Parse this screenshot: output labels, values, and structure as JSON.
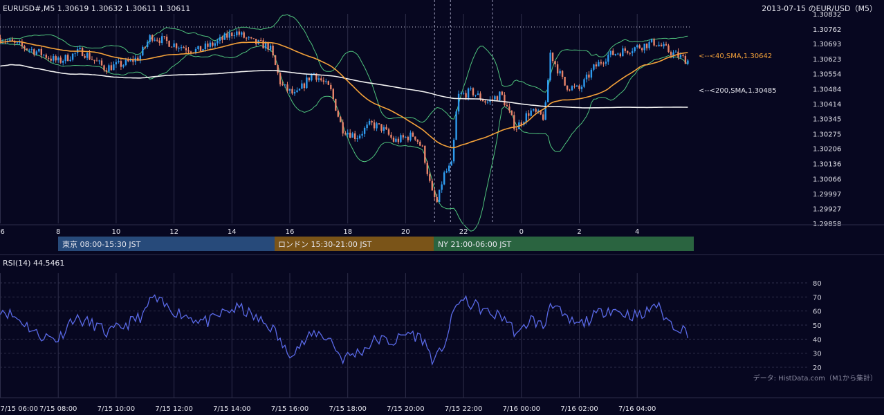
{
  "header": {
    "symbol_line": "EURUSD#,M5 1.30619 1.30632 1.30611 1.30611",
    "title": "2013-07-15 のEUR/USD（M5）"
  },
  "sessions": [
    {
      "label": "東京 08:00-15:30 JST",
      "color": "#274a7a"
    },
    {
      "label": "ロンドン 15:30-21:00 JST",
      "color": "#7a5418"
    },
    {
      "label": "NY 21:00-06:00 JST",
      "color": "#2a6440"
    }
  ],
  "legend": {
    "sma40": "<--<40,SMA,1.30642",
    "sma200": "<--<200,SMA,1.30485"
  },
  "rsi": {
    "label": "RSI(14) 44.5461",
    "ticks": [
      "80",
      "70",
      "60",
      "50",
      "40",
      "30",
      "20"
    ]
  },
  "source": "データ: HistData.com（M1から集計）",
  "colors": {
    "background": "#070720",
    "grid": "#2e2e4a",
    "bull": "#2f9cf0",
    "bear": "#e8846a",
    "sma40": "#f5a23a",
    "sma200": "#f2f2f2",
    "bollinger": "#4fc47d",
    "rsi": "#5a6ae8"
  },
  "chart_data": [
    {
      "type": "candlestick",
      "ylim": [
        1.29858,
        1.30832
      ],
      "y_ticks": [
        "1.30832",
        "1.30762",
        "1.30693",
        "1.30623",
        "1.30554",
        "1.30484",
        "1.30414",
        "1.30345",
        "1.30275",
        "1.30206",
        "1.30136",
        "1.30066",
        "1.29997",
        "1.29927",
        "1.29858"
      ],
      "x_ticks": [
        "6",
        "8",
        "10",
        "12",
        "14",
        "16",
        "18",
        "20",
        "22",
        "0",
        "2",
        "4"
      ],
      "x_labels_bottom": [
        "7/15 06:00",
        "7/15 08:00",
        "7/15 10:00",
        "7/15 12:00",
        "7/15 14:00",
        "7/15 16:00",
        "7/15 18:00",
        "7/15 20:00",
        "7/15 22:00",
        "7/16 00:00",
        "7/16 02:00",
        "7/16 04:00"
      ],
      "series": [
        {
          "name": "40,SMA",
          "last": 1.30642
        },
        {
          "name": "200,SMA",
          "last": 1.30485
        }
      ],
      "price_anchors": [
        {
          "hour": 6.0,
          "price": 1.3072
        },
        {
          "hour": 6.5,
          "price": 1.3069
        },
        {
          "hour": 7.2,
          "price": 1.3066
        },
        {
          "hour": 8.0,
          "price": 1.3061
        },
        {
          "hour": 8.8,
          "price": 1.3066
        },
        {
          "hour": 9.6,
          "price": 1.3058
        },
        {
          "hour": 10.3,
          "price": 1.306
        },
        {
          "hour": 10.8,
          "price": 1.3063
        },
        {
          "hour": 11.2,
          "price": 1.3073
        },
        {
          "hour": 12.0,
          "price": 1.3069
        },
        {
          "hour": 12.8,
          "price": 1.3066
        },
        {
          "hour": 13.5,
          "price": 1.307
        },
        {
          "hour": 14.1,
          "price": 1.3075
        },
        {
          "hour": 14.7,
          "price": 1.307
        },
        {
          "hour": 15.3,
          "price": 1.3068
        },
        {
          "hour": 15.7,
          "price": 1.305
        },
        {
          "hour": 16.2,
          "price": 1.3045
        },
        {
          "hour": 16.8,
          "price": 1.3056
        },
        {
          "hour": 17.4,
          "price": 1.3048
        },
        {
          "hour": 17.8,
          "price": 1.303
        },
        {
          "hour": 18.3,
          "price": 1.3026
        },
        {
          "hour": 18.8,
          "price": 1.3032
        },
        {
          "hour": 19.2,
          "price": 1.303
        },
        {
          "hour": 19.6,
          "price": 1.3024
        },
        {
          "hour": 20.3,
          "price": 1.3027
        },
        {
          "hour": 20.6,
          "price": 1.302
        },
        {
          "hour": 20.9,
          "price": 1.3
        },
        {
          "hour": 21.1,
          "price": 1.2995
        },
        {
          "hour": 21.3,
          "price": 1.3008
        },
        {
          "hour": 21.6,
          "price": 1.3013
        },
        {
          "hour": 21.8,
          "price": 1.3045
        },
        {
          "hour": 22.3,
          "price": 1.3047
        },
        {
          "hour": 22.8,
          "price": 1.3042
        },
        {
          "hour": 23.3,
          "price": 1.3046
        },
        {
          "hour": 23.8,
          "price": 1.303
        },
        {
          "hour": 24.3,
          "price": 1.3038
        },
        {
          "hour": 24.8,
          "price": 1.3035
        },
        {
          "hour": 25.0,
          "price": 1.3065
        },
        {
          "hour": 25.5,
          "price": 1.305
        },
        {
          "hour": 26.0,
          "price": 1.3048
        },
        {
          "hour": 26.5,
          "price": 1.3058
        },
        {
          "hour": 27.0,
          "price": 1.3064
        },
        {
          "hour": 27.8,
          "price": 1.3067
        },
        {
          "hour": 28.6,
          "price": 1.307
        },
        {
          "hour": 29.2,
          "price": 1.3065
        },
        {
          "hour": 29.8,
          "price": 1.30611
        }
      ],
      "rsi_ylim": [
        20,
        80
      ],
      "rsi_anchors": [
        {
          "hour": 6.0,
          "value": 62
        },
        {
          "hour": 6.8,
          "value": 52
        },
        {
          "hour": 7.3,
          "value": 43
        },
        {
          "hour": 8.0,
          "value": 40
        },
        {
          "hour": 8.5,
          "value": 55
        },
        {
          "hour": 9.3,
          "value": 50
        },
        {
          "hour": 9.7,
          "value": 44
        },
        {
          "hour": 10.5,
          "value": 52
        },
        {
          "hour": 11.0,
          "value": 58
        },
        {
          "hour": 11.2,
          "value": 70
        },
        {
          "hour": 11.8,
          "value": 62
        },
        {
          "hour": 12.5,
          "value": 56
        },
        {
          "hour": 13.2,
          "value": 52
        },
        {
          "hour": 13.8,
          "value": 60
        },
        {
          "hour": 14.3,
          "value": 62
        },
        {
          "hour": 14.8,
          "value": 55
        },
        {
          "hour": 15.4,
          "value": 48
        },
        {
          "hour": 15.9,
          "value": 30
        },
        {
          "hour": 16.4,
          "value": 36
        },
        {
          "hour": 16.9,
          "value": 45
        },
        {
          "hour": 17.4,
          "value": 40
        },
        {
          "hour": 17.8,
          "value": 26
        },
        {
          "hour": 18.5,
          "value": 32
        },
        {
          "hour": 19.0,
          "value": 40
        },
        {
          "hour": 19.6,
          "value": 38
        },
        {
          "hour": 20.1,
          "value": 45
        },
        {
          "hour": 20.6,
          "value": 40
        },
        {
          "hour": 21.0,
          "value": 23
        },
        {
          "hour": 21.4,
          "value": 40
        },
        {
          "hour": 21.8,
          "value": 68
        },
        {
          "hour": 22.4,
          "value": 64
        },
        {
          "hour": 22.9,
          "value": 58
        },
        {
          "hour": 23.4,
          "value": 56
        },
        {
          "hour": 23.9,
          "value": 42
        },
        {
          "hour": 24.3,
          "value": 55
        },
        {
          "hour": 24.8,
          "value": 48
        },
        {
          "hour": 25.0,
          "value": 68
        },
        {
          "hour": 25.5,
          "value": 54
        },
        {
          "hour": 26.0,
          "value": 50
        },
        {
          "hour": 26.5,
          "value": 56
        },
        {
          "hour": 27.0,
          "value": 62
        },
        {
          "hour": 27.6,
          "value": 58
        },
        {
          "hour": 28.2,
          "value": 56
        },
        {
          "hour": 28.6,
          "value": 66
        },
        {
          "hour": 29.1,
          "value": 52
        },
        {
          "hour": 29.8,
          "value": 44.5
        }
      ]
    }
  ]
}
